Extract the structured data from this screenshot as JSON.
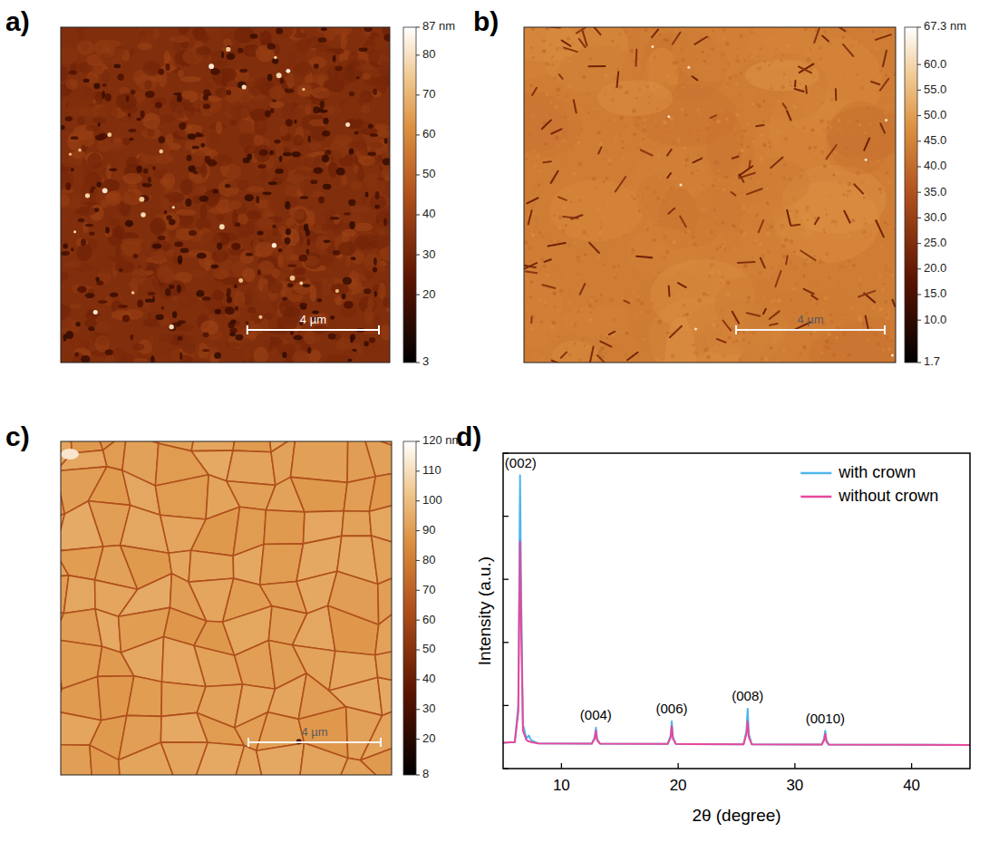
{
  "chart_data": [
    {
      "type": "image",
      "panel": "a)",
      "scale_bar": "4 µm",
      "colorbar_range": [
        3,
        87
      ],
      "colorbar_ticks": [
        3,
        20,
        30,
        40,
        50,
        60,
        70,
        80,
        {
          "value": 87,
          "label": "87 nm"
        }
      ]
    },
    {
      "type": "image",
      "panel": "b)",
      "scale_bar": "4 µm",
      "colorbar_range": [
        1.7,
        67.3
      ],
      "colorbar_ticks": [
        1.7,
        {
          "value": 10,
          "label": "10.0"
        },
        {
          "value": 15,
          "label": "15.0"
        },
        {
          "value": 20,
          "label": "20.0"
        },
        {
          "value": 25,
          "label": "25.0"
        },
        {
          "value": 30,
          "label": "30.0"
        },
        {
          "value": 35,
          "label": "35.0"
        },
        {
          "value": 40,
          "label": "40.0"
        },
        {
          "value": 45,
          "label": "45.0"
        },
        {
          "value": 50,
          "label": "50.0"
        },
        {
          "value": 55,
          "label": "55.0"
        },
        {
          "value": 60,
          "label": "60.0"
        },
        {
          "value": 67.3,
          "label": "67.3 nm"
        }
      ]
    },
    {
      "type": "image",
      "panel": "c)",
      "scale_bar": "4 µm",
      "colorbar_range": [
        8,
        120
      ],
      "colorbar_ticks": [
        8,
        20,
        30,
        40,
        50,
        60,
        70,
        80,
        90,
        100,
        110,
        {
          "value": 120,
          "label": "120 nm"
        }
      ]
    },
    {
      "type": "line",
      "panel": "d)",
      "xlabel": "2θ (degree)",
      "ylabel": "Intensity (a.u.)",
      "x": [
        5,
        6.0,
        6.3,
        6.45,
        6.55,
        6.7,
        7.0,
        7.2,
        7.4,
        8,
        12.6,
        12.85,
        12.95,
        13.05,
        13.3,
        19.1,
        19.35,
        19.45,
        19.55,
        19.8,
        25.6,
        25.85,
        25.95,
        26.05,
        26.3,
        32.3,
        32.5,
        32.6,
        32.7,
        32.9,
        45
      ],
      "series": [
        {
          "name": "with crown",
          "color": "#4db6ec",
          "values": [
            8.2,
            8.4,
            20,
            93,
            55,
            14,
            9.5,
            10.5,
            9,
            8,
            7.9,
            10,
            13,
            9.5,
            7.9,
            7.8,
            10.5,
            15,
            10,
            7.8,
            7.7,
            12,
            19,
            11,
            7.7,
            7.6,
            9.5,
            12,
            9,
            7.6,
            7.5
          ]
        },
        {
          "name": "without crown",
          "color": "#e8489a",
          "values": [
            8.2,
            8.4,
            18,
            72,
            45,
            12,
            9,
            8.6,
            8.4,
            8,
            7.9,
            9.5,
            12,
            9,
            7.9,
            7.8,
            9.8,
            13.5,
            9.5,
            7.8,
            7.7,
            11,
            15,
            10,
            7.7,
            7.6,
            9,
            11,
            8.6,
            7.6,
            7.5
          ]
        }
      ],
      "xlim": [
        5,
        45
      ],
      "xticks": [
        10,
        20,
        30,
        40
      ],
      "ylim": [
        0,
        100
      ],
      "yticks": [
        0,
        20,
        40,
        60,
        80,
        100
      ],
      "tick_labels": "x",
      "legend": "upper right",
      "annotations": [
        {
          "text": "(002)",
          "x": 6.5,
          "y": 94
        },
        {
          "text": "(004)",
          "x": 12.95,
          "y": 14
        },
        {
          "text": "(006)",
          "x": 19.45,
          "y": 16
        },
        {
          "text": "(008)",
          "x": 25.95,
          "y": 20
        },
        {
          "text": "(0010)",
          "x": 32.6,
          "y": 13
        }
      ]
    }
  ]
}
